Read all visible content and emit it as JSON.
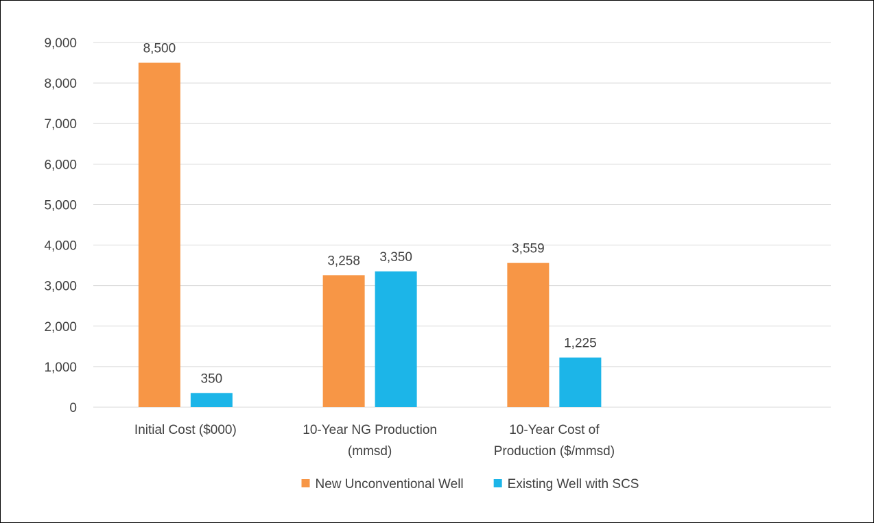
{
  "chart_data": {
    "type": "bar",
    "categories": [
      [
        "Initial Cost ($000)"
      ],
      [
        "10-Year NG Production",
        "(mmsd)"
      ],
      [
        "10-Year Cost of",
        "Production ($/mmsd)"
      ],
      [
        ""
      ]
    ],
    "series": [
      {
        "name": "New Unconventional Well",
        "color": "#F79646",
        "values": [
          8500,
          3258,
          3559,
          null
        ],
        "labels": [
          "8,500",
          "3,258",
          "3,559",
          ""
        ]
      },
      {
        "name": "Existing Well with SCS",
        "color": "#1CB5E8",
        "values": [
          350,
          3350,
          1225,
          null
        ],
        "labels": [
          "350",
          "3,350",
          "1,225",
          ""
        ]
      }
    ],
    "ylim": [
      0,
      9000
    ],
    "ytick_step": 1000,
    "yticks": [
      "0",
      "1,000",
      "2,000",
      "3,000",
      "4,000",
      "5,000",
      "6,000",
      "7,000",
      "8,000",
      "9,000"
    ],
    "grid": true,
    "gridline_color": "#D9D9D9",
    "legend_position": "bottom",
    "title": "",
    "xlabel": "",
    "ylabel": ""
  }
}
